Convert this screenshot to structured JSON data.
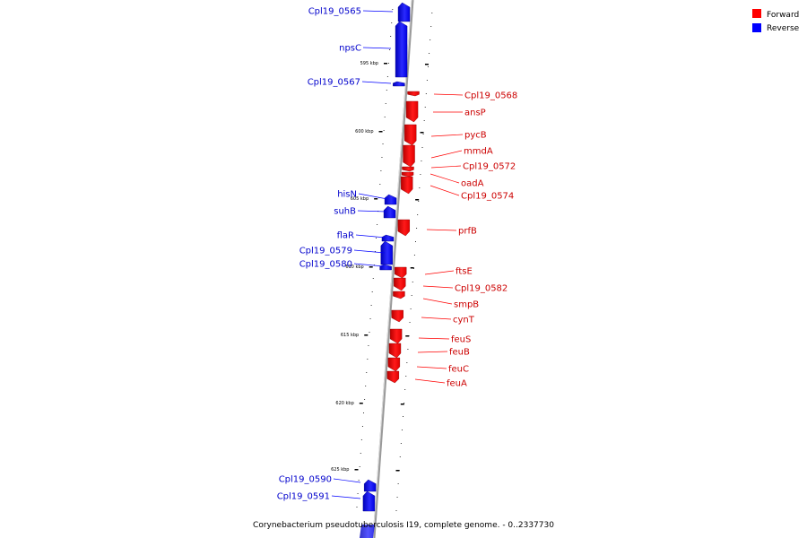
{
  "caption": "Corynebacterium pseudotuberculosis I19, complete genome. - 0..2337730",
  "legend": [
    {
      "label": "Forward",
      "color": "#ff0000"
    },
    {
      "label": "Reverse",
      "color": "#0000ff"
    }
  ],
  "colors": {
    "forward": "#ff0000",
    "reverse": "#0000ff",
    "axis": "#888888"
  },
  "scale_labels": [
    "595 kbp",
    "600 kbp",
    "605 kbp",
    "610 kbp",
    "615 kbp",
    "620 kbp",
    "625 kbp"
  ],
  "genes": [
    {
      "name": "Cpl19_0565",
      "strand": "reverse"
    },
    {
      "name": "npsC",
      "strand": "reverse"
    },
    {
      "name": "Cpl19_0567",
      "strand": "reverse"
    },
    {
      "name": "Cpl19_0568",
      "strand": "forward"
    },
    {
      "name": "ansP",
      "strand": "forward"
    },
    {
      "name": "pycB",
      "strand": "forward"
    },
    {
      "name": "mmdA",
      "strand": "forward"
    },
    {
      "name": "Cpl19_0572",
      "strand": "forward"
    },
    {
      "name": "oadA",
      "strand": "forward"
    },
    {
      "name": "Cpl19_0574",
      "strand": "forward"
    },
    {
      "name": "hisN",
      "strand": "reverse"
    },
    {
      "name": "suhB",
      "strand": "reverse"
    },
    {
      "name": "prfB",
      "strand": "forward"
    },
    {
      "name": "flaR",
      "strand": "reverse"
    },
    {
      "name": "Cpl19_0579",
      "strand": "reverse"
    },
    {
      "name": "Cpl19_0580",
      "strand": "reverse"
    },
    {
      "name": "ftsE",
      "strand": "forward"
    },
    {
      "name": "Cpl19_0582",
      "strand": "forward"
    },
    {
      "name": "smpB",
      "strand": "forward"
    },
    {
      "name": "cynT",
      "strand": "forward"
    },
    {
      "name": "feuS",
      "strand": "forward"
    },
    {
      "name": "feuB",
      "strand": "forward"
    },
    {
      "name": "feuC",
      "strand": "forward"
    },
    {
      "name": "feuA",
      "strand": "forward"
    },
    {
      "name": "Cpl19_0590",
      "strand": "reverse"
    },
    {
      "name": "Cpl19_0591",
      "strand": "reverse"
    }
  ]
}
